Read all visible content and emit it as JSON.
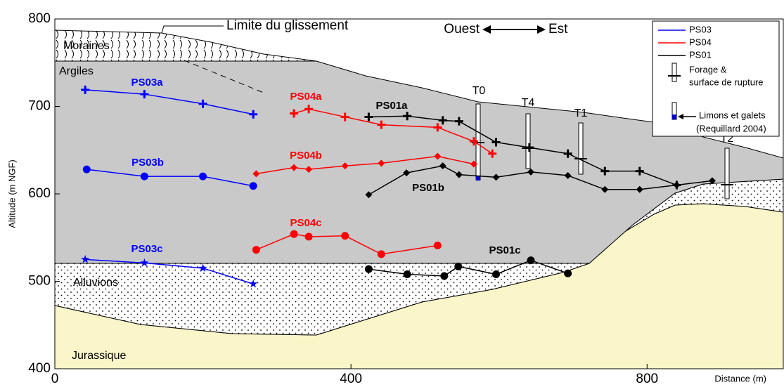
{
  "chart_data": {
    "type": "line",
    "x_label": "Distance (m)",
    "y_label": "Altitude (m NGF)",
    "xlim": [
      0,
      984
    ],
    "ylim": [
      400,
      800
    ],
    "xticks": [
      0,
      400,
      800
    ],
    "yticks": [
      400,
      500,
      600,
      700,
      800
    ],
    "groups": [
      {
        "name": "PS03",
        "color": "#0000ff",
        "series": [
          {
            "name": "PS03a",
            "marker": "plus",
            "x": [
              41,
              121,
              200,
              268
            ],
            "values": [
              719,
              714,
              703,
              691
            ]
          },
          {
            "name": "PS03b",
            "marker": "circle",
            "x": [
              43,
              121,
              200,
              268
            ],
            "values": [
              628,
              620,
              620,
              609
            ]
          },
          {
            "name": "PS03c",
            "marker": "star",
            "x": [
              41,
              121,
              200,
              268
            ],
            "values": [
              525,
              521,
              515,
              497
            ]
          }
        ]
      },
      {
        "name": "PS04",
        "color": "#ff0000",
        "series": [
          {
            "name": "PS04a",
            "marker": "plus",
            "x": [
              323,
              343,
              392,
              441,
              517,
              566,
              591
            ],
            "values": [
              692,
              697,
              688,
              679,
              676,
              660,
              646
            ]
          },
          {
            "name": "PS04b",
            "marker": "diamond",
            "x": [
              272,
              323,
              343,
              392,
              441,
              517,
              566
            ],
            "values": [
              623,
              630,
              628,
              632,
              635,
              643,
              634
            ]
          },
          {
            "name": "PS04c",
            "marker": "circle",
            "x": [
              272,
              323,
              343,
              392,
              441,
              517
            ],
            "values": [
              536,
              554,
              551,
              552,
              531,
              541
            ]
          }
        ]
      },
      {
        "name": "PS01",
        "color": "#000000",
        "series": [
          {
            "name": "PS01a",
            "marker": "plus",
            "x": [
              424,
              476,
              524,
              546,
              596,
              641,
              693,
              743,
              790,
              840
            ],
            "values": [
              688,
              689,
              684,
              683,
              659,
              653,
              646,
              626,
              626,
              610
            ]
          },
          {
            "name": "PS01b",
            "marker": "diamond",
            "x": [
              424,
              475,
              524,
              546,
              596,
              643,
              693,
              743,
              790,
              840,
              888
            ],
            "values": [
              599,
              624,
              632,
              622,
              619,
              625,
              621,
              605,
              605,
              610,
              615
            ]
          },
          {
            "name": "PS01c",
            "marker": "circle",
            "x": [
              424,
              476,
              526,
              545,
              596,
              643,
              693
            ],
            "values": [
              514,
              508,
              506,
              517,
              508,
              524,
              509
            ]
          }
        ]
      }
    ],
    "annotations": {
      "slide_limit": "Limite du glissement",
      "west": "Ouest",
      "east": "Est",
      "layers": [
        "Moraines",
        "Argiles",
        "Alluvions",
        "Jurassique"
      ],
      "boreholes": [
        "T0",
        "T4",
        "T1",
        "T2"
      ]
    },
    "legend": {
      "borehole": [
        "Forage &",
        "surface de rupture"
      ],
      "silts": [
        "Limons et galets",
        "(Requillard 2004)"
      ]
    }
  }
}
